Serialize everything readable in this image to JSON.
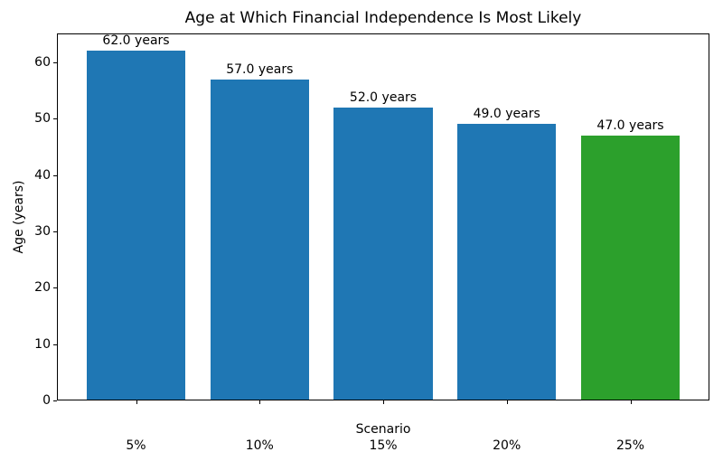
{
  "chart_data": {
    "type": "bar",
    "title": "Age at Which Financial Independence Is Most Likely",
    "xlabel": "Scenario",
    "ylabel": "Age (years)",
    "categories": [
      "5%",
      "10%",
      "15%",
      "20%",
      "25%"
    ],
    "values": [
      62,
      57,
      52,
      49,
      47
    ],
    "bar_labels": [
      "62.0 years",
      "57.0 years",
      "52.0 years",
      "49.0 years",
      "47.0 years"
    ],
    "bar_colors": [
      "#1f77b4",
      "#1f77b4",
      "#1f77b4",
      "#1f77b4",
      "#2ca02c"
    ],
    "yticks": [
      0,
      10,
      20,
      30,
      40,
      50,
      60
    ],
    "ylim": [
      0,
      65.1
    ],
    "grid": false,
    "legend_position": "none"
  },
  "colors": {
    "bar_blue": "#1f77b4",
    "bar_green": "#2ca02c",
    "text": "#000000",
    "spine": "#000000",
    "background": "#ffffff"
  }
}
